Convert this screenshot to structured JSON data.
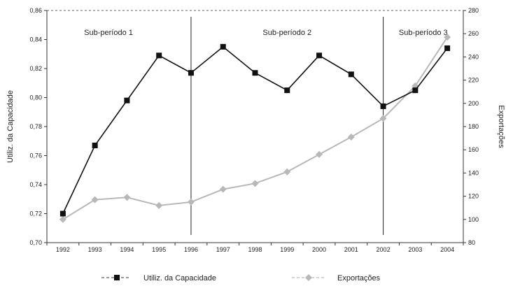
{
  "chart_data": {
    "type": "line",
    "categories": [
      "1992",
      "1993",
      "1994",
      "1995",
      "1996",
      "1997",
      "1998",
      "1999",
      "2000",
      "2001",
      "2002",
      "2003",
      "2004"
    ],
    "series": [
      {
        "name": "Utiliz. da Capacidade",
        "axis": "left",
        "color": "#111111",
        "marker": "square",
        "values": [
          0.72,
          0.767,
          0.798,
          0.829,
          0.817,
          0.835,
          0.817,
          0.805,
          0.829,
          0.816,
          0.794,
          0.805,
          0.834
        ]
      },
      {
        "name": "Exportações",
        "axis": "right",
        "color": "#b8b8b8",
        "marker": "diamond",
        "values": [
          100,
          117,
          119,
          112,
          115,
          126,
          131,
          141,
          156,
          171,
          187,
          215,
          257
        ]
      }
    ],
    "y_left": {
      "label": "Utiliz. da Capacidade",
      "min": 0.7,
      "max": 0.86,
      "ticks": [
        "0,70",
        "0,72",
        "0,74",
        "0,76",
        "0,78",
        "0,80",
        "0,82",
        "0,84",
        "0,86"
      ]
    },
    "y_right": {
      "label": "Exportações",
      "min": 80,
      "max": 280,
      "ticks": [
        "80",
        "100",
        "120",
        "140",
        "160",
        "180",
        "200",
        "220",
        "240",
        "260",
        "280"
      ]
    },
    "subperiods": [
      {
        "label": "Sub-período 1",
        "from": "1992",
        "to": "1996"
      },
      {
        "label": "Sub-período 2",
        "from": "1996",
        "to": "2002"
      },
      {
        "label": "Sub-período 3",
        "from": "2002",
        "to": "2004"
      }
    ],
    "dividers": [
      "1996",
      "2002"
    ],
    "legend": {
      "position": "bottom"
    },
    "grid": false
  }
}
